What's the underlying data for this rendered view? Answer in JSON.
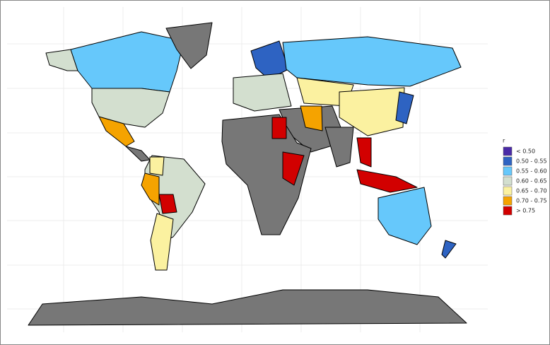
{
  "legend": {
    "title": "r",
    "items": [
      {
        "label": "< 0.50",
        "color": "#4a2aa6"
      },
      {
        "label": "0.50 - 0.55",
        "color": "#2e63c2"
      },
      {
        "label": "0.55 - 0.60",
        "color": "#66c8fb"
      },
      {
        "label": "0.60 - 0.65",
        "color": "#d3dfcf"
      },
      {
        "label": "0.65 - 0.70",
        "color": "#fbf1a0"
      },
      {
        "label": "0.70 - 0.75",
        "color": "#f5a300"
      },
      {
        "label": "> 0.75",
        "color": "#d20000"
      }
    ]
  }
}
